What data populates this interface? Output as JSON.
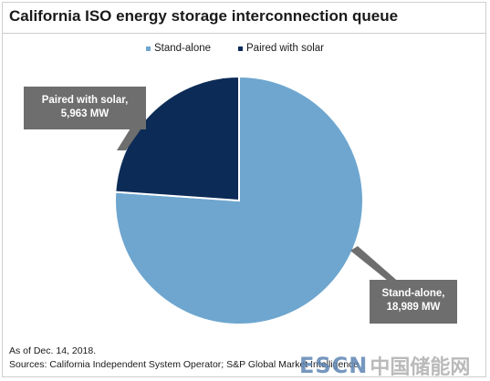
{
  "colors": {
    "standalone": "#6ea6cf",
    "solar": "#0c2b57",
    "callout_bg": "#6e6e6e",
    "watermark_latin": "#5f86b3",
    "watermark_cjk": "#b3b3b3"
  },
  "legend": {
    "items": [
      {
        "label": "Stand-alone",
        "color": "#6ea6cf"
      },
      {
        "label": "Paired with solar",
        "color": "#0c2b57"
      }
    ]
  },
  "callouts": {
    "solar": {
      "line1": "Paired with solar,",
      "line2": "5,963 MW"
    },
    "standalone": {
      "line1": "Stand-alone,",
      "line2": "18,989 MW"
    }
  },
  "footer": {
    "date_note": "As of Dec. 14, 2018.",
    "sources": "Sources: California Independent System Operator; S&P Global Market Intelligence"
  },
  "watermark": {
    "latin": "ESCN",
    "cjk": "中国储能网"
  },
  "chart_data": {
    "type": "pie",
    "title": "California ISO energy storage interconnection queue",
    "unit": "MW",
    "slices": [
      {
        "label": "Stand-alone",
        "value": 18989,
        "color": "#6ea6cf"
      },
      {
        "label": "Paired with solar",
        "value": 5963,
        "color": "#0c2b57"
      }
    ],
    "legend_position": "top-center"
  }
}
